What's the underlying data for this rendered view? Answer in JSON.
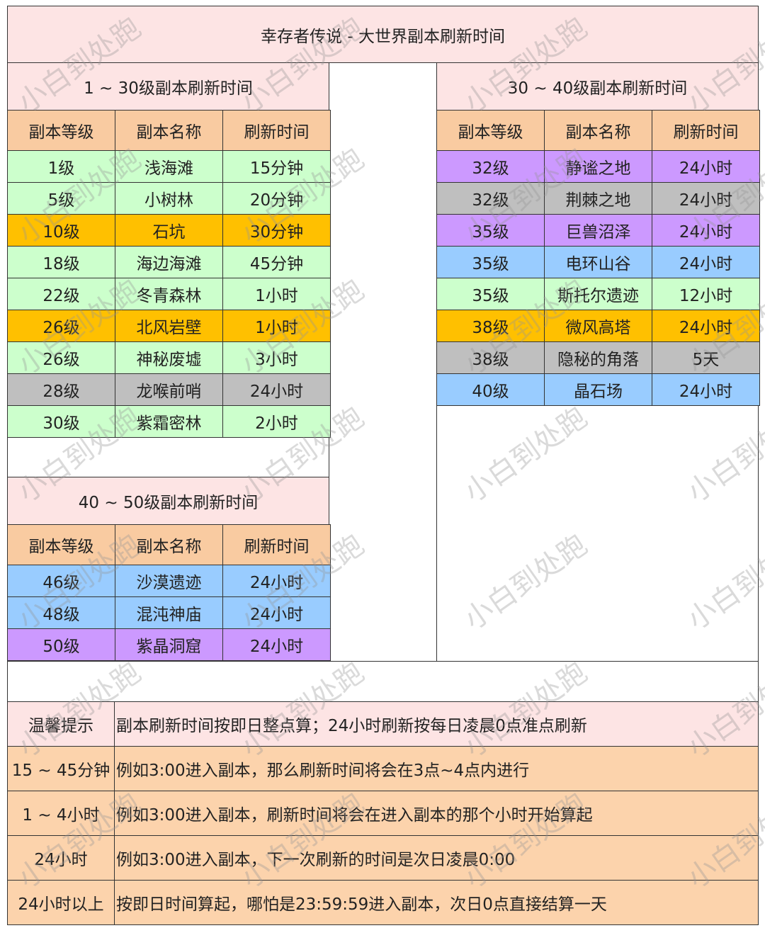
{
  "title": "幸存者传说 - 大世界副本刷新时间",
  "columns": [
    "副本等级",
    "副本名称",
    "刷新时间"
  ],
  "colors": {
    "green": "#ccffcc",
    "yellow": "#ffc000",
    "gray": "#bfbfbf",
    "purple": "#cc99ff",
    "blue": "#99ccff",
    "header": "#f9cba1",
    "pink": "#fde4e4",
    "note": "#fcd3ac"
  },
  "sections": [
    {
      "title": "1 ~ 30级副本刷新时间",
      "rows": [
        {
          "level": "1级",
          "name": "浅海滩",
          "time": "15分钟",
          "color": "green"
        },
        {
          "level": "5级",
          "name": "小树林",
          "time": "20分钟",
          "color": "green"
        },
        {
          "level": "10级",
          "name": "石坑",
          "time": "30分钟",
          "color": "yellow"
        },
        {
          "level": "18级",
          "name": "海边海滩",
          "time": "45分钟",
          "color": "green"
        },
        {
          "level": "22级",
          "name": "冬青森林",
          "time": "1小时",
          "color": "green"
        },
        {
          "level": "26级",
          "name": "北风岩壁",
          "time": "1小时",
          "color": "yellow"
        },
        {
          "level": "26级",
          "name": "神秘废墟",
          "time": "3小时",
          "color": "green"
        },
        {
          "level": "28级",
          "name": "龙喉前哨",
          "time": "24小时",
          "color": "gray"
        },
        {
          "level": "30级",
          "name": "紫霜密林",
          "time": "2小时",
          "color": "green"
        }
      ]
    },
    {
      "title": "30 ~ 40级副本刷新时间",
      "rows": [
        {
          "level": "32级",
          "name": "静谧之地",
          "time": "24小时",
          "color": "purple"
        },
        {
          "level": "32级",
          "name": "荆棘之地",
          "time": "24小时",
          "color": "gray"
        },
        {
          "level": "35级",
          "name": "巨兽沼泽",
          "time": "24小时",
          "color": "purple"
        },
        {
          "level": "35级",
          "name": "电环山谷",
          "time": "24小时",
          "color": "blue"
        },
        {
          "level": "35级",
          "name": "斯托尔遗迹",
          "time": "12小时",
          "color": "green"
        },
        {
          "level": "38级",
          "name": "微风高塔",
          "time": "24小时",
          "color": "yellow"
        },
        {
          "level": "38级",
          "name": "隐秘的角落",
          "time": "5天",
          "color": "gray"
        },
        {
          "level": "40级",
          "name": "晶石场",
          "time": "24小时",
          "color": "blue"
        }
      ]
    },
    {
      "title": "40 ~ 50级副本刷新时间",
      "rows": [
        {
          "level": "46级",
          "name": "沙漠遗迹",
          "time": "24小时",
          "color": "blue"
        },
        {
          "level": "48级",
          "name": "混沌神庙",
          "time": "24小时",
          "color": "blue"
        },
        {
          "level": "50级",
          "name": "紫晶洞窟",
          "time": "24小时",
          "color": "purple"
        }
      ]
    }
  ],
  "notes": [
    {
      "label": "温馨提示",
      "text": "副本刷新时间按即日整点算；24小时刷新按每日凌晨0点准点刷新",
      "color": "pink"
    },
    {
      "label": "15 ~ 45分钟",
      "text": "例如3:00进入副本，那么刷新时间将会在3点~4点内进行",
      "color": "note"
    },
    {
      "label": "1 ~ 4小时",
      "text": "例如3:00进入副本，刷新时间将会在进入副本的那个小时开始算起",
      "color": "note"
    },
    {
      "label": "24小时",
      "text": "例如3:00进入副本，下一次刷新的时间是次日凌晨0:00",
      "color": "note"
    },
    {
      "label": "24小时以上",
      "text": "按即日时间算起，哪怕是23:59:59进入副本，次日0点直接结算一天",
      "color": "note"
    }
  ],
  "watermark": "小白到处跑"
}
